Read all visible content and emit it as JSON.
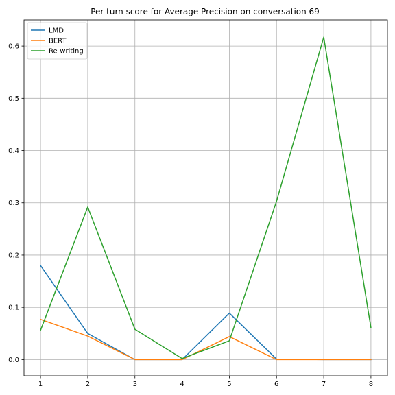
{
  "chart_data": {
    "type": "line",
    "title": "Per turn score for Average Precision on conversation 69",
    "xlabel": "",
    "ylabel": "",
    "x": [
      1,
      2,
      3,
      4,
      5,
      6,
      7,
      8
    ],
    "xlim": [
      0.65,
      8.35
    ],
    "ylim": [
      -0.031,
      0.65
    ],
    "x_ticks": [
      "1",
      "2",
      "3",
      "4",
      "5",
      "6",
      "7",
      "8"
    ],
    "y_ticks": [
      "0.0",
      "0.1",
      "0.2",
      "0.3",
      "0.4",
      "0.5",
      "0.6"
    ],
    "grid": true,
    "legend_position": "upper-left",
    "series": [
      {
        "name": "LMD",
        "color": "#1f77b4",
        "values": [
          0.18,
          0.05,
          0.0,
          0.0,
          0.089,
          0.001,
          0.0,
          0.0
        ]
      },
      {
        "name": "BERT",
        "color": "#ff7f0e",
        "values": [
          0.077,
          0.045,
          0.0,
          0.0,
          0.044,
          0.0,
          0.0,
          0.0
        ]
      },
      {
        "name": "Re-writing",
        "color": "#2ca02c",
        "values": [
          0.056,
          0.292,
          0.058,
          0.002,
          0.036,
          0.303,
          0.617,
          0.061
        ]
      }
    ]
  }
}
